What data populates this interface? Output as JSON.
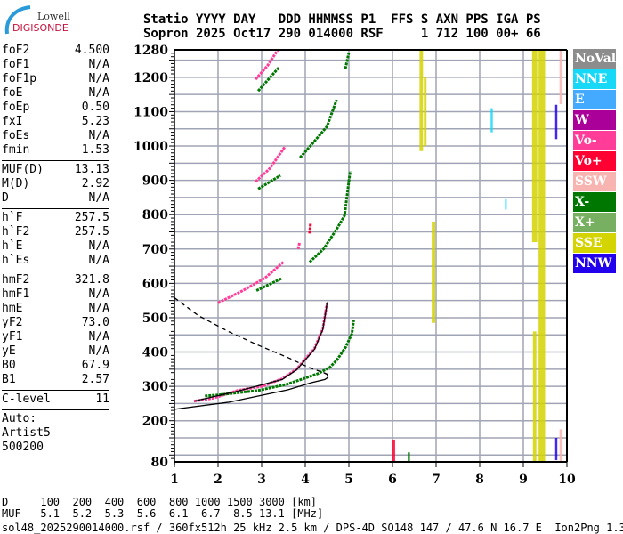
{
  "logo": {
    "line1": "Lowell",
    "line2": "DIGISONDE"
  },
  "header": {
    "line1": "Statio YYYY DAY   DDD HHMMSS P1  FFS S AXN PPS IGA PS",
    "line2": "Sopron 2025 Oct17 290 014000 RSF     1 712 100 00+ 66"
  },
  "params": {
    "group1": [
      {
        "label": "foF2",
        "value": "4.500"
      },
      {
        "label": "foF1",
        "value": "N/A"
      },
      {
        "label": "foF1p",
        "value": "N/A"
      },
      {
        "label": "foE",
        "value": "N/A"
      },
      {
        "label": "foEp",
        "value": "0.50"
      },
      {
        "label": "fxI",
        "value": "5.23"
      },
      {
        "label": "foEs",
        "value": "N/A"
      },
      {
        "label": "fmin",
        "value": "1.53"
      }
    ],
    "group2": [
      {
        "label": "MUF(D)",
        "value": "13.13"
      },
      {
        "label": "M(D)",
        "value": "2.92"
      },
      {
        "label": "D",
        "value": "N/A"
      }
    ],
    "group3": [
      {
        "label": "h`F",
        "value": "257.5"
      },
      {
        "label": "h`F2",
        "value": "257.5"
      },
      {
        "label": "h`E",
        "value": "N/A"
      },
      {
        "label": "h`Es",
        "value": "N/A"
      }
    ],
    "group4": [
      {
        "label": "hmF2",
        "value": "321.8"
      },
      {
        "label": "hmF1",
        "value": "N/A"
      },
      {
        "label": "hmE",
        "value": "N/A"
      },
      {
        "label": "yF2",
        "value": "73.0"
      },
      {
        "label": "yF1",
        "value": "N/A"
      },
      {
        "label": "yE",
        "value": "N/A"
      },
      {
        "label": "B0",
        "value": "67.9"
      },
      {
        "label": "B1",
        "value": "2.57"
      }
    ],
    "group5": [
      {
        "label": "C-level",
        "value": "11"
      }
    ],
    "auto": [
      "Auto:",
      "Artist5",
      "500200"
    ]
  },
  "legend": [
    {
      "label": "NoVal",
      "color": "#8c8c8c"
    },
    {
      "label": "NNE",
      "color": "#18d8f8"
    },
    {
      "label": "E",
      "color": "#44aaff"
    },
    {
      "label": "W",
      "color": "#aa0099"
    },
    {
      "label": "Vo-",
      "color": "#ff3d99"
    },
    {
      "label": "Vo+",
      "color": "#ff0033"
    },
    {
      "label": "SSW",
      "color": "#f8b4b0"
    },
    {
      "label": "X-",
      "color": "#007700"
    },
    {
      "label": "X+",
      "color": "#77b060"
    },
    {
      "label": "SSE",
      "color": "#d4d400"
    },
    {
      "label": "NNW",
      "color": "#2200ee"
    }
  ],
  "footer": {
    "d_row": "D     100  200  400  600  800 1000 1500 3000 [km]",
    "muf_row": "MUF   5.1  5.2  5.3  5.6  6.1  6.7  8.5 13.1 [MHz]",
    "file_info": "sol48_2025290014000.rsf / 360fx512h 25 kHz 2.5 km / DPS-4D SO148 147 / 47.6 N 16.7 E  Ion2Png 1.3.20"
  },
  "chart_data": {
    "type": "scatter",
    "title": "",
    "xlabel": "",
    "ylabel": "",
    "xlim": [
      1,
      10
    ],
    "ylim": [
      80,
      1280
    ],
    "x_ticks": [
      "1",
      "2",
      "3",
      "4",
      "5",
      "6",
      "7",
      "8",
      "9",
      "10"
    ],
    "y_ticks": [
      "80",
      "200",
      "300",
      "400",
      "500",
      "600",
      "700",
      "800",
      "900",
      "1000",
      "1100",
      "1200",
      "1280"
    ],
    "grid": true,
    "grid_step_km": 50,
    "legend_placement": "right",
    "traces": [
      {
        "type": "Vo-",
        "points": [
          [
            1.45,
            257
          ],
          [
            1.9,
            266
          ],
          [
            2.45,
            288
          ],
          [
            3.0,
            300
          ],
          [
            3.47,
            322
          ],
          [
            3.8,
            350
          ],
          [
            4.21,
            410
          ],
          [
            4.4,
            467
          ],
          [
            4.48,
            527
          ],
          [
            4.5,
            540
          ]
        ]
      },
      {
        "type": "X-",
        "points": [
          [
            1.7,
            272
          ],
          [
            2.0,
            275
          ],
          [
            2.92,
            288
          ],
          [
            3.58,
            306
          ],
          [
            3.88,
            319
          ],
          [
            4.29,
            337
          ],
          [
            4.56,
            355
          ],
          [
            4.72,
            376
          ],
          [
            4.93,
            415
          ],
          [
            5.07,
            454
          ],
          [
            5.11,
            493
          ]
        ]
      },
      {
        "type": "Vo-",
        "points": [
          [
            2.0,
            543
          ],
          [
            2.57,
            579
          ],
          [
            3.07,
            615
          ],
          [
            3.5,
            662
          ]
        ]
      },
      {
        "type": "Vo-",
        "points": [
          [
            3.84,
            700
          ],
          [
            3.87,
            720
          ]
        ]
      },
      {
        "type": "Vo+",
        "points": [
          [
            4.1,
            745
          ],
          [
            4.12,
            775
          ]
        ]
      },
      {
        "type": "X-",
        "points": [
          [
            2.88,
            579
          ],
          [
            3.47,
            615
          ]
        ]
      },
      {
        "type": "X-",
        "points": [
          [
            4.1,
            662
          ],
          [
            4.42,
            700
          ],
          [
            4.72,
            758
          ],
          [
            4.9,
            797
          ],
          [
            5.03,
            927
          ]
        ]
      },
      {
        "type": "Vo-",
        "points": [
          [
            2.86,
            896
          ],
          [
            3.19,
            935
          ],
          [
            3.54,
            999
          ]
        ]
      },
      {
        "type": "X-",
        "points": [
          [
            2.92,
            875
          ],
          [
            3.43,
            914
          ]
        ]
      },
      {
        "type": "X-",
        "points": [
          [
            3.88,
            966
          ],
          [
            4.15,
            1005
          ],
          [
            4.5,
            1057
          ],
          [
            4.72,
            1135
          ]
        ]
      },
      {
        "type": "Vo-",
        "points": [
          [
            2.86,
            1194
          ],
          [
            3.13,
            1233
          ],
          [
            3.37,
            1280
          ]
        ]
      },
      {
        "type": "X-",
        "points": [
          [
            2.92,
            1160
          ],
          [
            3.39,
            1228
          ]
        ]
      },
      {
        "type": "X-",
        "points": [
          [
            4.92,
            1225
          ],
          [
            5.0,
            1272
          ]
        ]
      }
    ],
    "model_curves": [
      {
        "style": "solid",
        "points": [
          [
            1.45,
            257
          ],
          [
            2.45,
            286
          ],
          [
            3.47,
            320
          ],
          [
            3.8,
            348
          ],
          [
            4.21,
            408
          ],
          [
            4.4,
            465
          ],
          [
            4.48,
            525
          ],
          [
            4.5,
            545
          ]
        ]
      },
      {
        "style": "solid",
        "points": [
          [
            0.98,
            233
          ],
          [
            2.25,
            254
          ],
          [
            3.6,
            290
          ],
          [
            4.15,
            311
          ],
          [
            4.45,
            320
          ],
          [
            4.52,
            326
          ],
          [
            4.5,
            335
          ],
          [
            4.42,
            340
          ]
        ]
      },
      {
        "style": "dashed",
        "points": [
          [
            1.0,
            558
          ],
          [
            1.55,
            506
          ],
          [
            2.25,
            459
          ],
          [
            2.92,
            420
          ],
          [
            3.6,
            384
          ],
          [
            4.08,
            355
          ],
          [
            4.42,
            340
          ],
          [
            4.6,
            330
          ]
        ]
      }
    ],
    "clutter": [
      {
        "type": "SSE",
        "f": [
          6.62,
          6.7
        ],
        "h": [
          985,
          1280
        ]
      },
      {
        "type": "SSE",
        "f": [
          6.72,
          6.78
        ],
        "h": [
          1000,
          1200
        ]
      },
      {
        "type": "SSE",
        "f": [
          6.9,
          6.98
        ],
        "h": [
          485,
          780
        ]
      },
      {
        "type": "SSE",
        "f": [
          9.2,
          9.32
        ],
        "h": [
          720,
          1280
        ]
      },
      {
        "type": "SSE",
        "f": [
          9.35,
          9.5
        ],
        "h": [
          80,
          1280
        ]
      },
      {
        "type": "SSE",
        "f": [
          9.22,
          9.3
        ],
        "h": [
          80,
          460
        ]
      },
      {
        "type": "SSW",
        "f": [
          9.83,
          9.9
        ],
        "h": [
          1122,
          1280
        ]
      },
      {
        "type": "SSW",
        "f": [
          9.83,
          9.9
        ],
        "h": [
          80,
          175
        ]
      },
      {
        "type": "NNW",
        "f": [
          9.73,
          9.78
        ],
        "h": [
          1020,
          1120
        ]
      },
      {
        "type": "NNW",
        "f": [
          9.73,
          9.78
        ],
        "h": [
          85,
          150
        ]
      },
      {
        "type": "NNE",
        "f": [
          8.25,
          8.3
        ],
        "h": [
          1040,
          1110
        ]
      },
      {
        "type": "NNE",
        "f": [
          8.58,
          8.62
        ],
        "h": [
          815,
          845
        ]
      },
      {
        "type": "Vo+",
        "f": [
          6.0,
          6.06
        ],
        "h": [
          80,
          145
        ]
      },
      {
        "type": "X-",
        "f": [
          6.35,
          6.4
        ],
        "h": [
          80,
          108
        ]
      }
    ]
  }
}
